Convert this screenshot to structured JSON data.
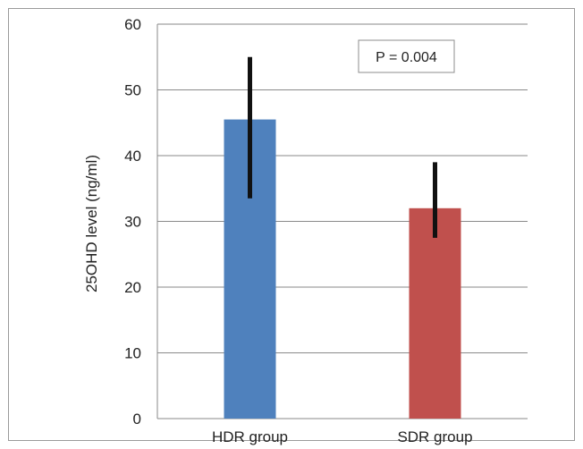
{
  "chart_data": {
    "type": "bar",
    "categories": [
      "HDR group",
      "SDR group"
    ],
    "values": [
      45.5,
      32
    ],
    "error_bars": [
      {
        "low": 33.5,
        "high": 55
      },
      {
        "low": 27.5,
        "high": 39
      }
    ],
    "colors": [
      "#4f81bd",
      "#c0504d"
    ],
    "title": "",
    "xlabel": "",
    "ylabel": "25OHD level (ng/ml)",
    "ylim": [
      0,
      60
    ],
    "yticks": [
      0,
      10,
      20,
      30,
      40,
      50,
      60
    ],
    "grid": true,
    "annotation": "P = 0.004",
    "legend": "none"
  }
}
